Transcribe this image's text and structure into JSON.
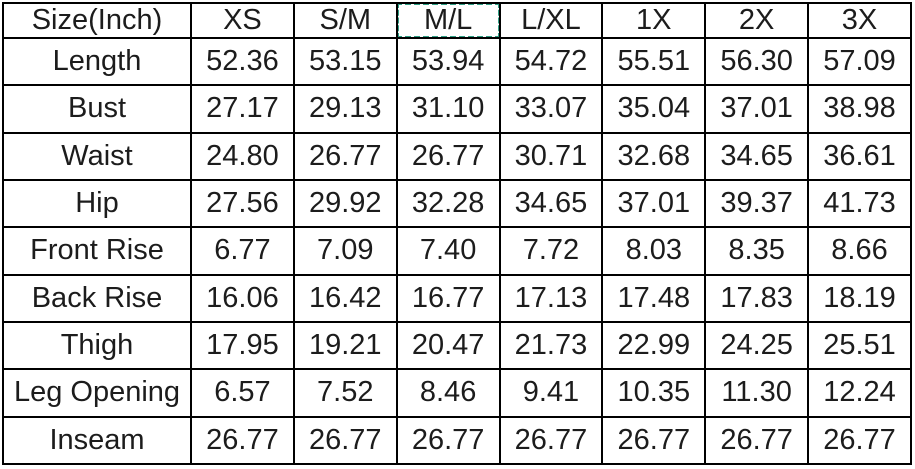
{
  "chart_data": {
    "type": "table",
    "title": "Size(Inch)",
    "selected_column": "M/L",
    "columns": [
      "Size(Inch)",
      "XS",
      "S/M",
      "M/L",
      "L/XL",
      "1X",
      "2X",
      "3X"
    ],
    "rows": [
      [
        "Length",
        "52.36",
        "53.15",
        "53.94",
        "54.72",
        "55.51",
        "56.30",
        "57.09"
      ],
      [
        "Bust",
        "27.17",
        "29.13",
        "31.10",
        "33.07",
        "35.04",
        "37.01",
        "38.98"
      ],
      [
        "Waist",
        "24.80",
        "26.77",
        "26.77",
        "30.71",
        "32.68",
        "34.65",
        "36.61"
      ],
      [
        "Hip",
        "27.56",
        "29.92",
        "32.28",
        "34.65",
        "37.01",
        "39.37",
        "41.73"
      ],
      [
        "Front Rise",
        "6.77",
        "7.09",
        "7.40",
        "7.72",
        "8.03",
        "8.35",
        "8.66"
      ],
      [
        "Back Rise",
        "16.06",
        "16.42",
        "16.77",
        "17.13",
        "17.48",
        "17.83",
        "18.19"
      ],
      [
        "Thigh",
        "17.95",
        "19.21",
        "20.47",
        "21.73",
        "22.99",
        "24.25",
        "25.51"
      ],
      [
        "Leg Opening",
        "6.57",
        "7.52",
        "8.46",
        "9.41",
        "10.35",
        "11.30",
        "12.24"
      ],
      [
        "Inseam",
        "26.77",
        "26.77",
        "26.77",
        "26.77",
        "26.77",
        "26.77",
        "26.77"
      ]
    ]
  },
  "colors": {
    "selection_border": "#2f9e84",
    "grid_border": "#000000",
    "text": "#1c1c1c",
    "background": "#ffffff"
  }
}
